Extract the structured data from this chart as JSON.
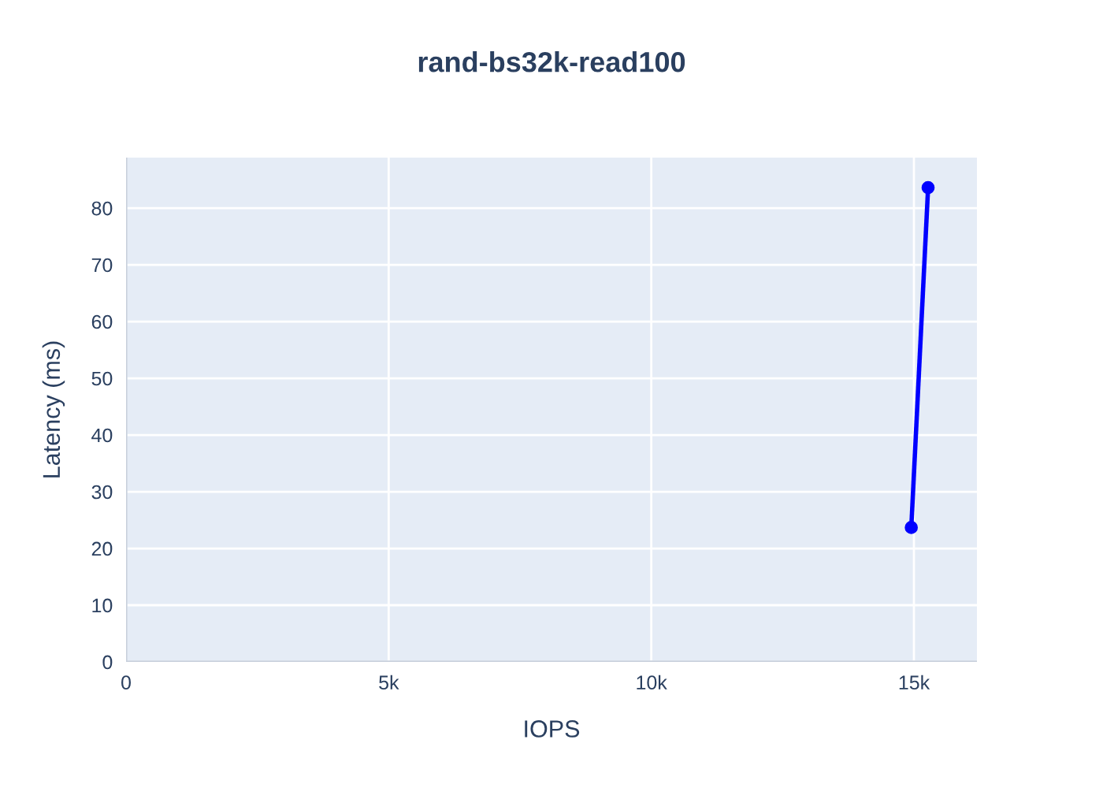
{
  "chart_data": {
    "type": "line",
    "title": "rand-bs32k-read100",
    "xlabel": "IOPS",
    "ylabel": "Latency (ms)",
    "x": [
      14950,
      15270
    ],
    "series": [
      {
        "color": "#0000ff",
        "values": [
          23.7,
          83.6
        ]
      }
    ],
    "marker": "circle",
    "grid": true,
    "legend": false,
    "xlim": [
      0,
      16200
    ],
    "ylim": [
      0,
      88.9
    ],
    "xticks": [
      0,
      {
        "value": 5000,
        "label": "5k"
      },
      {
        "value": 10000,
        "label": "10k"
      },
      {
        "value": 15000,
        "label": "15k"
      }
    ],
    "yticks": [
      0,
      10,
      20,
      30,
      40,
      50,
      60,
      70,
      80
    ]
  }
}
